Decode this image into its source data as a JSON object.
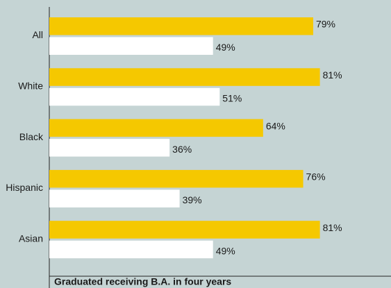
{
  "chart_data": {
    "type": "bar",
    "orientation": "horizontal",
    "title": "Graduated receiving B.A. in four years",
    "categories": [
      "All",
      "White",
      "Black",
      "Hispanic",
      "Asian"
    ],
    "series": [
      {
        "color": "#f5c800",
        "values": [
          79,
          81,
          64,
          76,
          81
        ],
        "value_labels": [
          "79%",
          "81%",
          "64%",
          "76%",
          "81%"
        ]
      },
      {
        "color": "#ffffff",
        "values": [
          49,
          51,
          36,
          39,
          49
        ],
        "value_labels": [
          "49%",
          "51%",
          "36%",
          "39%",
          "49%"
        ]
      }
    ],
    "xlim": [
      0,
      100
    ],
    "background": "#c5d4d4"
  }
}
